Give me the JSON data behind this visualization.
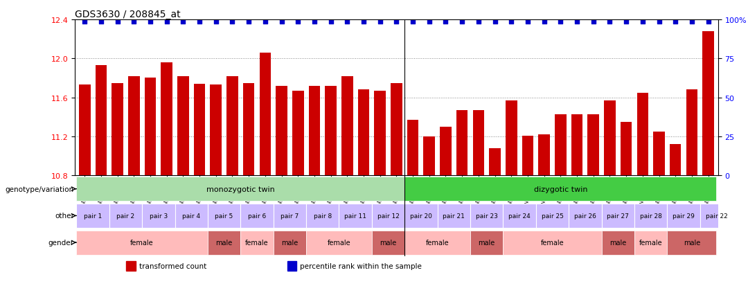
{
  "title": "GDS3630 / 208845_at",
  "samples": [
    "GSM189751",
    "GSM189752",
    "GSM189753",
    "GSM189754",
    "GSM189755",
    "GSM189756",
    "GSM189757",
    "GSM189758",
    "GSM189759",
    "GSM189760",
    "GSM189761",
    "GSM189762",
    "GSM189763",
    "GSM189764",
    "GSM189765",
    "GSM189766",
    "GSM189767",
    "GSM189768",
    "GSM189769",
    "GSM189770",
    "GSM189771",
    "GSM189772",
    "GSM189773",
    "GSM189774",
    "GSM189778",
    "GSM189779",
    "GSM189780",
    "GSM189781",
    "GSM189782",
    "GSM189783",
    "GSM189784",
    "GSM189785",
    "GSM189786",
    "GSM189787",
    "GSM189788",
    "GSM189789",
    "GSM189790",
    "GSM189775",
    "GSM189776"
  ],
  "values": [
    11.73,
    11.93,
    11.75,
    11.82,
    11.8,
    11.96,
    11.82,
    11.74,
    11.73,
    11.82,
    11.75,
    12.06,
    11.72,
    11.67,
    11.72,
    11.72,
    11.82,
    11.68,
    11.67,
    11.75,
    11.37,
    11.2,
    11.3,
    11.47,
    11.47,
    11.08,
    11.57,
    11.21,
    11.22,
    11.43,
    11.43,
    11.43,
    11.57,
    11.35,
    11.65,
    11.25,
    11.12,
    11.68,
    12.28
  ],
  "percentile_values": [
    12.38,
    12.38,
    12.38,
    12.38,
    12.38,
    12.38,
    12.38,
    12.38,
    12.38,
    12.38,
    12.38,
    12.38,
    12.38,
    12.38,
    12.38,
    12.38,
    12.38,
    12.38,
    12.38,
    12.38,
    12.38,
    12.38,
    12.38,
    12.38,
    12.38,
    12.38,
    12.38,
    12.38,
    12.38,
    12.38,
    12.38,
    12.38,
    12.38,
    12.38,
    12.38,
    12.38,
    12.38,
    12.38,
    12.38
  ],
  "bar_color": "#cc0000",
  "percentile_color": "#0000cc",
  "ylim_left": [
    10.8,
    12.4
  ],
  "yticks_left": [
    10.8,
    11.2,
    11.6,
    12.0,
    12.4
  ],
  "ylim_right": [
    0,
    100
  ],
  "yticks_right": [
    0,
    25,
    50,
    75,
    100
  ],
  "yticklabels_right": [
    "0",
    "25",
    "50",
    "75",
    "100%"
  ],
  "genotype_row": {
    "label": "genotype/variation",
    "groups": [
      {
        "text": "monozygotic twin",
        "start": 0,
        "end": 19,
        "color": "#aaddaa"
      },
      {
        "text": "dizygotic twin",
        "start": 20,
        "end": 38,
        "color": "#44cc44"
      }
    ]
  },
  "other_row": {
    "label": "other",
    "pairs": [
      "pair 1",
      "pair 2",
      "pair 3",
      "pair 4",
      "pair 5",
      "pair 6",
      "pair 7",
      "pair 8",
      "pair 11",
      "pair 12",
      "pair 20",
      "pair 21",
      "pair 23",
      "pair 24",
      "pair 25",
      "pair 26",
      "pair 27",
      "pair 28",
      "pair 29",
      "pair 22"
    ],
    "pair_spans": [
      2,
      2,
      2,
      2,
      2,
      2,
      2,
      2,
      2,
      2,
      2,
      2,
      2,
      2,
      2,
      2,
      2,
      2,
      2,
      2
    ],
    "pair_starts": [
      0,
      2,
      4,
      6,
      8,
      10,
      12,
      14,
      16,
      18,
      20,
      22,
      24,
      26,
      28,
      30,
      32,
      34,
      36,
      38
    ],
    "bg_color": "#ccbbff"
  },
  "gender_row": {
    "label": "gender",
    "groups": [
      {
        "text": "female",
        "start": 0,
        "end": 7,
        "color": "#ffbbbb"
      },
      {
        "text": "male",
        "start": 8,
        "end": 9,
        "color": "#cc6666"
      },
      {
        "text": "female",
        "start": 10,
        "end": 11,
        "color": "#ffbbbb"
      },
      {
        "text": "male",
        "start": 12,
        "end": 13,
        "color": "#cc6666"
      },
      {
        "text": "female",
        "start": 14,
        "end": 17,
        "color": "#ffbbbb"
      },
      {
        "text": "male",
        "start": 18,
        "end": 19,
        "color": "#cc6666"
      },
      {
        "text": "female",
        "start": 20,
        "end": 23,
        "color": "#ffbbbb"
      },
      {
        "text": "male",
        "start": 24,
        "end": 25,
        "color": "#cc6666"
      },
      {
        "text": "female",
        "start": 26,
        "end": 31,
        "color": "#ffbbbb"
      },
      {
        "text": "male",
        "start": 32,
        "end": 33,
        "color": "#cc6666"
      },
      {
        "text": "female",
        "start": 34,
        "end": 35,
        "color": "#ffbbbb"
      },
      {
        "text": "male",
        "start": 36,
        "end": 38,
        "color": "#cc6666"
      }
    ]
  },
  "legend": [
    {
      "label": "transformed count",
      "color": "#cc0000"
    },
    {
      "label": "percentile rank within the sample",
      "color": "#0000cc"
    }
  ],
  "background_color": "#ffffff",
  "grid_color": "#888888"
}
